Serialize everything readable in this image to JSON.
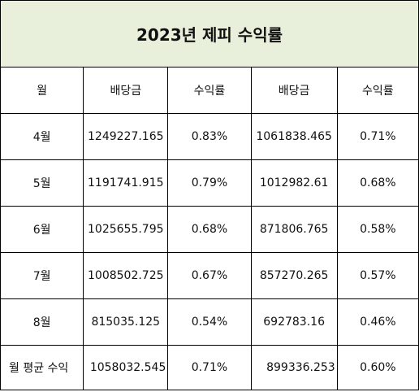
{
  "title": "2023년 제피 수익률",
  "headers": [
    "월",
    "배당금",
    "수익률",
    "배당금",
    "수익률"
  ],
  "rows": [
    [
      "4월",
      "1249227.165",
      "0.83%",
      "1061838.465",
      "0.71%"
    ],
    [
      "5월",
      "1191741.915",
      "0.79%",
      "1012982.61",
      "0.68%"
    ],
    [
      "6월",
      "1025655.795",
      "0.68%",
      "871806.765",
      "0.58%"
    ],
    [
      "7월",
      "1008502.725",
      "0.67%",
      "857270.265",
      "0.57%"
    ],
    [
      "8월",
      "815035.125",
      "0.54%",
      "692783.16",
      "0.46%"
    ]
  ],
  "average": [
    "월 평균 수익",
    "1058032.545",
    "0.71%",
    "899336.253",
    "0.60%"
  ],
  "colors": {
    "title_bg": "#e8f0dc",
    "border": "#000000"
  }
}
